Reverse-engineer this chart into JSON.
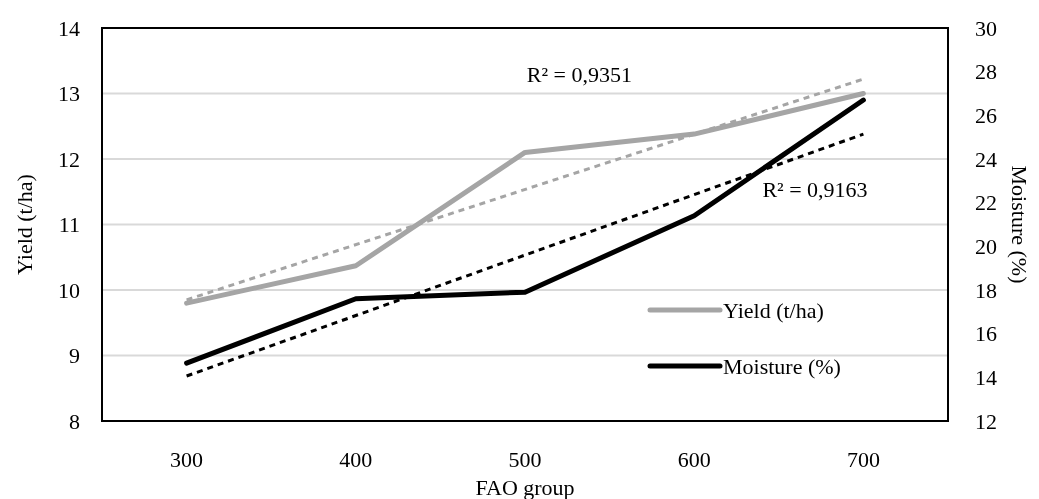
{
  "chart_data": {
    "type": "line",
    "xlabel": "FAO group",
    "ylabel": "Yield (t/ha)",
    "y2label": "Moisture (%)",
    "categories": [
      "300",
      "400",
      "500",
      "600",
      "700"
    ],
    "series": [
      {
        "name": "Yield (t/ha)",
        "color": "#a5a5a5",
        "values": [
          9.8,
          10.37,
          12.1,
          12.38,
          13.0
        ]
      },
      {
        "name": "Moisture (%)",
        "color": "#000000",
        "axis": "y2",
        "values": [
          14.65,
          17.6,
          17.9,
          21.4,
          26.7
        ]
      },
      {
        "type": "line",
        "color": "#a5a5a5",
        "line_style": "dashed",
        "x": [
          "300",
          "700"
        ],
        "values": [
          9.85,
          13.22
        ]
      },
      {
        "type": "line",
        "color": "#000000",
        "line_style": "dashed",
        "axis": "y2",
        "x": [
          "300",
          "700"
        ],
        "values": [
          14.06,
          25.14
        ]
      }
    ],
    "ylim": [
      8,
      14
    ],
    "yticks": [
      8,
      9,
      10,
      11,
      12,
      13,
      14
    ],
    "y2lim": [
      12,
      30
    ],
    "y2ticks": [
      12,
      14,
      16,
      18,
      20,
      22,
      24,
      26,
      28,
      30
    ],
    "grid": "y",
    "legend": "bottom right",
    "marker": "none",
    "annotations": [
      "R² = 0,9351",
      "R² = 0,9163"
    ]
  }
}
